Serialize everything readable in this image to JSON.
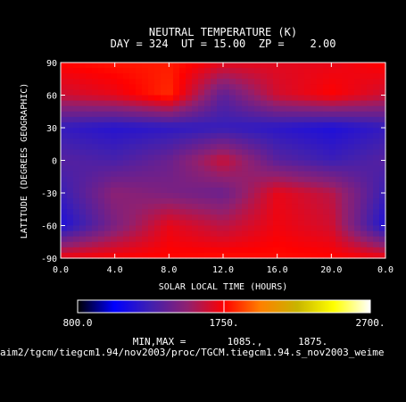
{
  "title": "NEUTRAL TEMPERATURE (K)",
  "subtitle": "DAY = 324  UT = 15.00  ZP =    2.00",
  "minmax_text": "MIN,MAX =       1085.,      1875.",
  "footer_path": "aim2/tgcm/tiegcm1.94/nov2003/proc/TGCM.tiegcm1.94.s_nov2003_weime",
  "chart_data": {
    "type": "heatmap",
    "xlabel": "SOLAR LOCAL TIME (HOURS)",
    "ylabel": "LATITUDE (DEGREES GEOGRAPHIC)",
    "xlim": [
      0,
      24
    ],
    "ylim": [
      -90,
      90
    ],
    "x_ticks": [
      "0.0",
      "4.0",
      "8.0",
      "12.0",
      "16.0",
      "20.0",
      "0.0"
    ],
    "y_ticks": [
      "90",
      "60",
      "30",
      "0",
      "-30",
      "-60",
      "-90"
    ],
    "colorbar": {
      "min": 800,
      "max": 2700,
      "labels": [
        "800.0",
        "1750.",
        "2700."
      ],
      "colors": [
        "#000000",
        "#0000ff",
        "#4020b0",
        "#902070",
        "#ff0000",
        "#ff8000",
        "#c8b400",
        "#ffff00",
        "#ffffff"
      ]
    },
    "data_min": 1085,
    "data_max": 1875,
    "x": [
      0,
      4,
      8,
      12,
      16,
      20,
      24
    ],
    "y": [
      90,
      60,
      30,
      0,
      -30,
      -60,
      -90
    ],
    "z": [
      [
        1760,
        1790,
        1800,
        1700,
        1690,
        1700,
        1760
      ],
      [
        1640,
        1700,
        1830,
        1360,
        1650,
        1750,
        1640
      ],
      [
        1230,
        1180,
        1210,
        1240,
        1200,
        1150,
        1230
      ],
      [
        1340,
        1300,
        1400,
        1640,
        1350,
        1260,
        1340
      ],
      [
        1250,
        1500,
        1450,
        1400,
        1700,
        1600,
        1250
      ],
      [
        1150,
        1450,
        1700,
        1600,
        1720,
        1650,
        1150
      ],
      [
        1730,
        1750,
        1760,
        1780,
        1770,
        1760,
        1730
      ]
    ]
  }
}
